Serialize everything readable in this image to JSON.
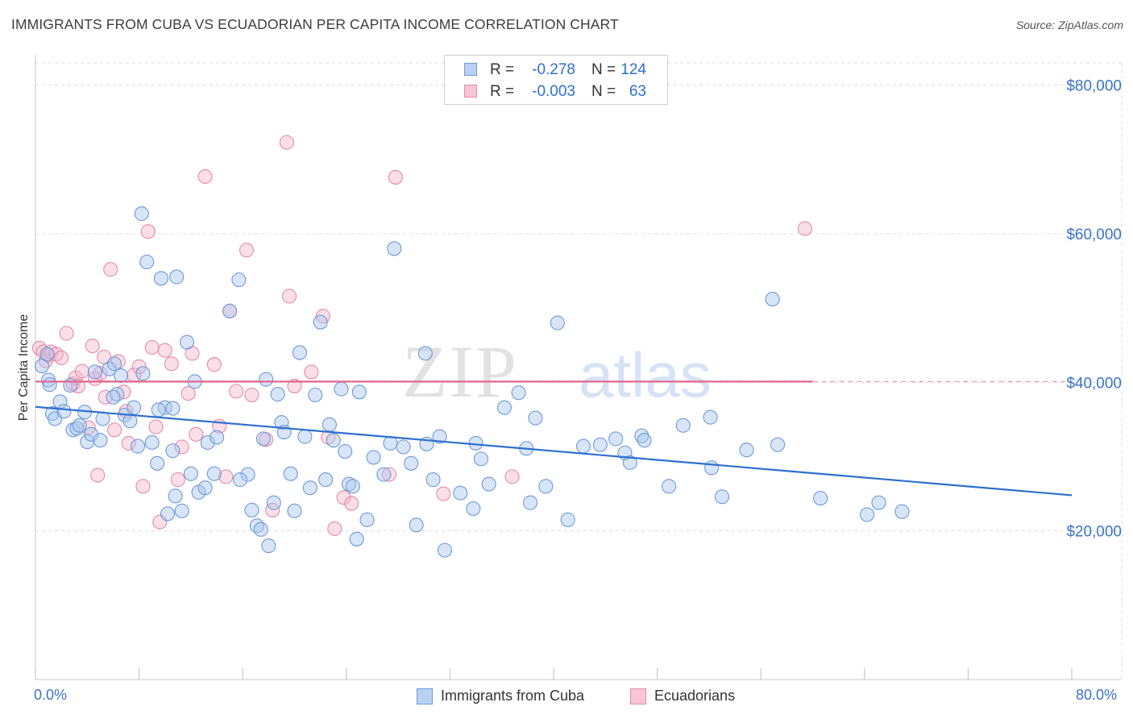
{
  "header": {
    "title": "IMMIGRANTS FROM CUBA VS ECUADORIAN PER CAPITA INCOME CORRELATION CHART",
    "source": "Source: ZipAtlas.com"
  },
  "legend": {
    "rows": [
      {
        "r_label": "R =",
        "r_value": "-0.278",
        "n_label": "N =",
        "n_value": "124"
      },
      {
        "r_label": "R =",
        "r_value": "-0.003",
        "n_label": "N =",
        "n_value": "63"
      }
    ]
  },
  "bottom_legend": {
    "series_1": "Immigrants from Cuba",
    "series_2": "Ecuadorians"
  },
  "x_axis": {
    "min_label": "0.0%",
    "max_label": "80.0%"
  },
  "y_axis": {
    "title": "Per Capita Income"
  },
  "watermark": {
    "zip": "ZIP",
    "atlas": "atlas"
  },
  "colors": {
    "series_1_fill": "#a9c6ee",
    "series_1_stroke": "#6d9ad8",
    "series_1_line": "#2f6fd0",
    "series_2_fill": "#f6b8cc",
    "series_2_stroke": "#e48aa8",
    "series_2_line": "#e2678f",
    "axis_label": "#3a74c6",
    "grid": "#dcdcdc"
  },
  "chart_data": {
    "type": "scatter",
    "title": "IMMIGRANTS FROM CUBA VS ECUADORIAN PER CAPITA INCOME CORRELATION CHART",
    "xlabel": "",
    "ylabel": "Per Capita Income",
    "xlim": [
      0,
      80
    ],
    "ylim": [
      0,
      83000
    ],
    "y_ticks": [
      20000,
      40000,
      60000,
      80000
    ],
    "y_tick_labels": [
      "$20,000",
      "$40,000",
      "$60,000",
      "$80,000"
    ],
    "x_tick_labels": [
      "0.0%",
      "80.0%"
    ],
    "grid": true,
    "legend_position": "top-center",
    "series": [
      {
        "name": "Immigrants from Cuba",
        "r": -0.278,
        "n": 124,
        "trend": {
          "x": [
            0,
            80
          ],
          "y": [
            36700,
            24800
          ]
        },
        "points": [
          [
            0.5,
            42200
          ],
          [
            0.9,
            43800
          ],
          [
            1.0,
            40300
          ],
          [
            1.1,
            39700
          ],
          [
            1.3,
            35800
          ],
          [
            1.5,
            35100
          ],
          [
            1.9,
            37400
          ],
          [
            2.2,
            36100
          ],
          [
            2.7,
            39600
          ],
          [
            2.9,
            33600
          ],
          [
            3.2,
            33800
          ],
          [
            3.4,
            34200
          ],
          [
            3.8,
            36000
          ],
          [
            4.0,
            32000
          ],
          [
            4.3,
            33000
          ],
          [
            4.6,
            41400
          ],
          [
            5.0,
            32200
          ],
          [
            5.2,
            35100
          ],
          [
            5.7,
            41800
          ],
          [
            6.1,
            42500
          ],
          [
            6.3,
            38400
          ],
          [
            6.6,
            40900
          ],
          [
            6.9,
            35600
          ],
          [
            7.3,
            34800
          ],
          [
            7.6,
            36600
          ],
          [
            7.9,
            31400
          ],
          [
            8.2,
            62700
          ],
          [
            8.6,
            56200
          ],
          [
            8.3,
            41200
          ],
          [
            9.0,
            31900
          ],
          [
            9.4,
            29100
          ],
          [
            9.7,
            54000
          ],
          [
            10.0,
            36600
          ],
          [
            10.2,
            22300
          ],
          [
            10.6,
            36500
          ],
          [
            10.9,
            54200
          ],
          [
            11.3,
            22700
          ],
          [
            11.7,
            45400
          ],
          [
            12.0,
            27700
          ],
          [
            12.3,
            40100
          ],
          [
            12.6,
            25200
          ],
          [
            13.1,
            25800
          ],
          [
            13.3,
            31900
          ],
          [
            13.8,
            27700
          ],
          [
            14.0,
            32600
          ],
          [
            15.0,
            49600
          ],
          [
            15.7,
            53800
          ],
          [
            16.4,
            27600
          ],
          [
            16.7,
            22800
          ],
          [
            17.1,
            20700
          ],
          [
            17.4,
            20200
          ],
          [
            17.8,
            40400
          ],
          [
            18.0,
            18000
          ],
          [
            18.4,
            23800
          ],
          [
            18.7,
            38400
          ],
          [
            19.0,
            34600
          ],
          [
            19.2,
            33300
          ],
          [
            19.7,
            27700
          ],
          [
            20.0,
            22700
          ],
          [
            20.4,
            44000
          ],
          [
            20.8,
            32700
          ],
          [
            21.2,
            25800
          ],
          [
            21.6,
            38300
          ],
          [
            22.0,
            48100
          ],
          [
            22.4,
            26900
          ],
          [
            22.7,
            34300
          ],
          [
            23.0,
            32200
          ],
          [
            23.6,
            39100
          ],
          [
            23.9,
            30700
          ],
          [
            24.2,
            26300
          ],
          [
            24.5,
            26000
          ],
          [
            24.8,
            18900
          ],
          [
            25.0,
            38700
          ],
          [
            25.6,
            21500
          ],
          [
            26.1,
            29900
          ],
          [
            26.9,
            27600
          ],
          [
            27.4,
            31800
          ],
          [
            27.7,
            58000
          ],
          [
            28.4,
            31300
          ],
          [
            29.0,
            29100
          ],
          [
            29.4,
            20800
          ],
          [
            30.1,
            43900
          ],
          [
            30.2,
            31700
          ],
          [
            30.7,
            26900
          ],
          [
            31.2,
            32700
          ],
          [
            31.6,
            17400
          ],
          [
            32.8,
            25100
          ],
          [
            33.8,
            23000
          ],
          [
            34.0,
            31800
          ],
          [
            34.4,
            29700
          ],
          [
            35.0,
            26300
          ],
          [
            36.2,
            36600
          ],
          [
            37.3,
            38600
          ],
          [
            37.9,
            31100
          ],
          [
            38.2,
            23800
          ],
          [
            38.6,
            35200
          ],
          [
            39.4,
            26000
          ],
          [
            40.3,
            48000
          ],
          [
            41.1,
            21500
          ],
          [
            42.3,
            31400
          ],
          [
            43.6,
            31600
          ],
          [
            44.8,
            32400
          ],
          [
            45.5,
            30500
          ],
          [
            45.9,
            29200
          ],
          [
            46.8,
            32800
          ],
          [
            47.0,
            32200
          ],
          [
            48.9,
            26000
          ],
          [
            50.0,
            34200
          ],
          [
            52.1,
            35300
          ],
          [
            52.2,
            28500
          ],
          [
            53.0,
            24600
          ],
          [
            54.9,
            30900
          ],
          [
            56.9,
            51200
          ],
          [
            57.3,
            31600
          ],
          [
            60.6,
            24400
          ],
          [
            64.2,
            22200
          ],
          [
            65.1,
            23800
          ],
          [
            66.9,
            22600
          ],
          [
            6.0,
            38000
          ],
          [
            9.5,
            36300
          ],
          [
            10.6,
            30800
          ],
          [
            17.6,
            32400
          ],
          [
            10.8,
            24700
          ],
          [
            15.8,
            26900
          ]
        ]
      },
      {
        "name": "Ecuadorians",
        "r": -0.003,
        "n": 63,
        "trend": {
          "x": [
            0,
            60
          ],
          "y": [
            40100,
            40100
          ],
          "dashed_to": 80
        },
        "points": [
          [
            0.3,
            44600
          ],
          [
            0.6,
            44100
          ],
          [
            0.8,
            42900
          ],
          [
            1.0,
            43600
          ],
          [
            1.2,
            44100
          ],
          [
            1.6,
            43800
          ],
          [
            2.0,
            43300
          ],
          [
            2.4,
            46600
          ],
          [
            2.9,
            39800
          ],
          [
            3.1,
            40600
          ],
          [
            3.3,
            39500
          ],
          [
            3.6,
            41500
          ],
          [
            4.1,
            33900
          ],
          [
            4.4,
            44900
          ],
          [
            4.6,
            40500
          ],
          [
            5.0,
            41200
          ],
          [
            5.4,
            38000
          ],
          [
            5.8,
            55200
          ],
          [
            6.1,
            33600
          ],
          [
            6.4,
            42800
          ],
          [
            6.8,
            38700
          ],
          [
            7.2,
            31800
          ],
          [
            7.6,
            41000
          ],
          [
            8.0,
            42100
          ],
          [
            8.3,
            26000
          ],
          [
            8.7,
            60300
          ],
          [
            9.0,
            44700
          ],
          [
            9.3,
            34000
          ],
          [
            9.6,
            21200
          ],
          [
            10.0,
            44300
          ],
          [
            10.5,
            42500
          ],
          [
            11.0,
            26900
          ],
          [
            11.3,
            31300
          ],
          [
            11.8,
            38500
          ],
          [
            12.1,
            43900
          ],
          [
            13.1,
            67700
          ],
          [
            13.8,
            42400
          ],
          [
            14.2,
            34100
          ],
          [
            14.7,
            27300
          ],
          [
            15.0,
            49600
          ],
          [
            15.5,
            38800
          ],
          [
            16.3,
            57800
          ],
          [
            17.8,
            32300
          ],
          [
            18.3,
            22800
          ],
          [
            19.4,
            72300
          ],
          [
            19.6,
            51600
          ],
          [
            20.0,
            39500
          ],
          [
            21.3,
            41400
          ],
          [
            22.2,
            48900
          ],
          [
            22.6,
            32600
          ],
          [
            23.1,
            20300
          ],
          [
            23.8,
            24500
          ],
          [
            24.4,
            23700
          ],
          [
            27.3,
            27600
          ],
          [
            27.8,
            67600
          ],
          [
            31.5,
            25000
          ],
          [
            36.8,
            27300
          ],
          [
            59.4,
            60700
          ],
          [
            4.8,
            27500
          ],
          [
            7.0,
            36100
          ],
          [
            16.7,
            38300
          ],
          [
            5.3,
            43400
          ],
          [
            12.4,
            33000
          ]
        ]
      }
    ]
  }
}
